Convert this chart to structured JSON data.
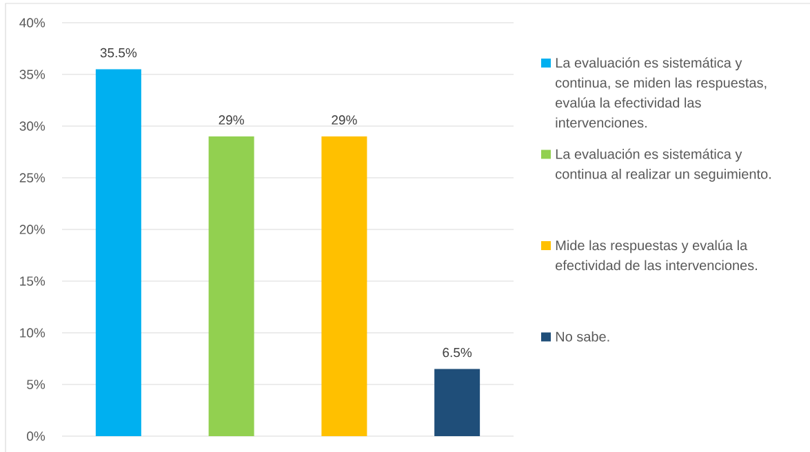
{
  "chart_data": {
    "type": "bar",
    "categories": [
      null,
      null,
      null,
      null
    ],
    "series": [
      {
        "name": "La evaluación es sistemática y continua, se miden las respuestas, evalúa la efectividad las intervenciones.",
        "color": "#00b0f0",
        "values": [
          35.5,
          null,
          null,
          null
        ],
        "value_labels": [
          "35.5%",
          null,
          null,
          null
        ]
      },
      {
        "name": "La evaluación es sistemática y continua al realizar un seguimiento.",
        "color": "#92d050",
        "values": [
          null,
          29,
          null,
          null
        ],
        "value_labels": [
          null,
          "29%",
          null,
          null
        ]
      },
      {
        "name": "Mide las respuestas y evalúa la efectividad de las intervenciones.",
        "color": "#ffc000",
        "values": [
          null,
          null,
          29,
          null
        ],
        "value_labels": [
          null,
          null,
          "29%",
          null
        ]
      },
      {
        "name": "No sabe.",
        "color": "#1f4e79",
        "values": [
          null,
          null,
          null,
          6.5
        ],
        "value_labels": [
          null,
          null,
          null,
          "6.5%"
        ]
      }
    ],
    "ylim": [
      0,
      40
    ],
    "yticks": [
      {
        "value": 0,
        "label": "0%"
      },
      {
        "value": 5,
        "label": "5%"
      },
      {
        "value": 10,
        "label": "10%"
      },
      {
        "value": 15,
        "label": "15%"
      },
      {
        "value": 20,
        "label": "20%"
      },
      {
        "value": 25,
        "label": "25%"
      },
      {
        "value": 30,
        "label": "30%"
      },
      {
        "value": 35,
        "label": "35%"
      },
      {
        "value": 40,
        "label": "40%"
      }
    ],
    "grid": "y",
    "legend": "right"
  }
}
